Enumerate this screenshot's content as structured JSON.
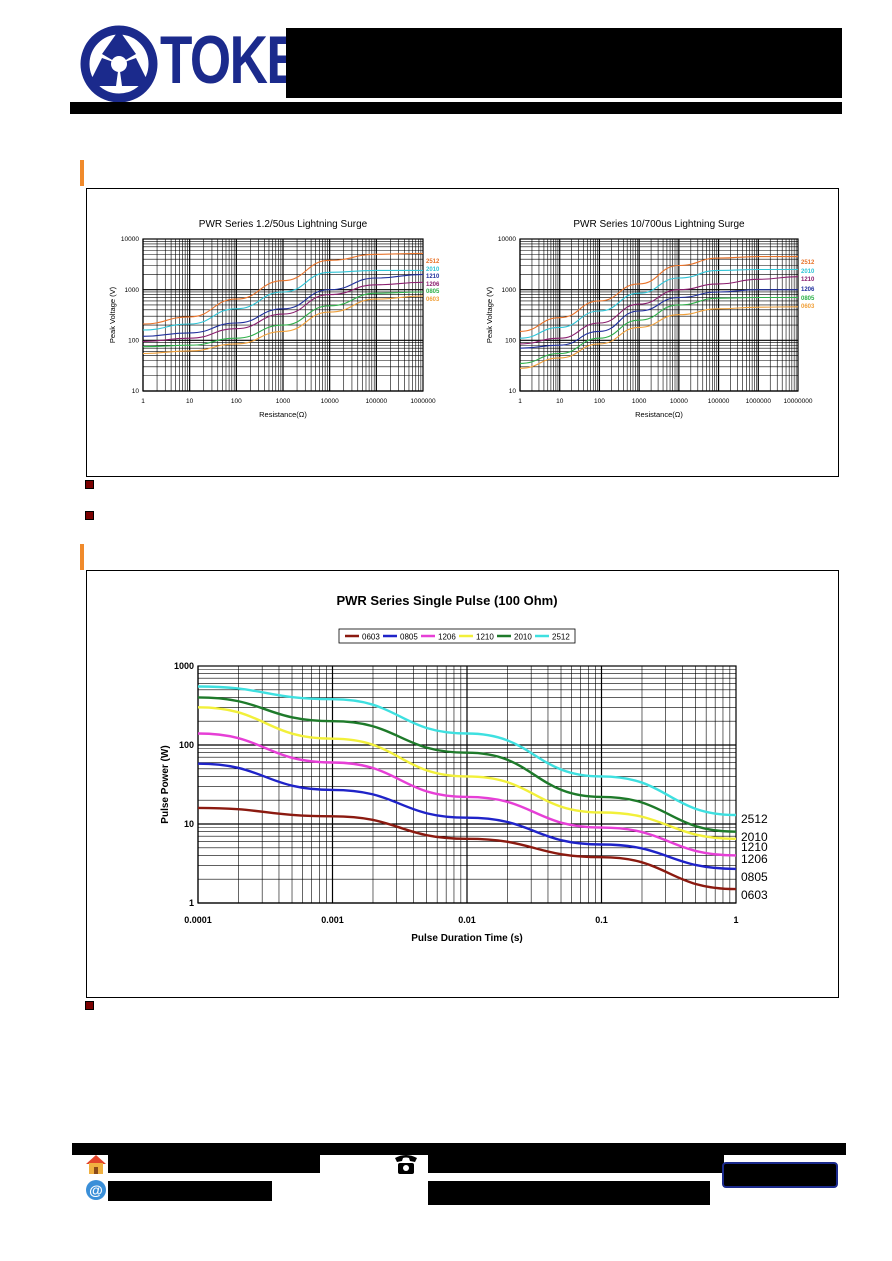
{
  "brand": {
    "name": "TOKEN",
    "colors": {
      "primary": "#1b2a8c",
      "accent": "#f08a2b",
      "bullet": "#7a0000"
    }
  },
  "icons": [
    "home-icon",
    "email-icon",
    "phone-icon"
  ],
  "chart_data": [
    {
      "type": "line",
      "title": "PWR Series 1.2/50us Lightning Surge",
      "xlabel": "Resistance(Ω)",
      "ylabel": "Peak Voltage (V)",
      "xscale": "log",
      "yscale": "log",
      "xlim": [
        1,
        1000000
      ],
      "ylim": [
        10,
        10000
      ],
      "xticks": [
        "1",
        "10",
        "100",
        "1000",
        "10000",
        "100000",
        "1000000"
      ],
      "yticks": [
        "10",
        "100",
        "1000",
        "10000"
      ],
      "grid": true,
      "series": [
        {
          "name": "2512",
          "color": "#e8732a",
          "points": [
            [
              1,
              210
            ],
            [
              10,
              290
            ],
            [
              100,
              650
            ],
            [
              1000,
              1500
            ],
            [
              10000,
              3800
            ],
            [
              100000,
              5000
            ],
            [
              1000000,
              5200
            ]
          ]
        },
        {
          "name": "2010",
          "color": "#2fc4d6",
          "points": [
            [
              1,
              160
            ],
            [
              10,
              210
            ],
            [
              100,
              420
            ],
            [
              1000,
              900
            ],
            [
              10000,
              2200
            ],
            [
              100000,
              2400
            ],
            [
              1000000,
              2400
            ]
          ]
        },
        {
          "name": "1210",
          "color": "#1f2f9c",
          "points": [
            [
              1,
              120
            ],
            [
              10,
              140
            ],
            [
              100,
              220
            ],
            [
              1000,
              420
            ],
            [
              10000,
              1000
            ],
            [
              100000,
              1700
            ],
            [
              1000000,
              2000
            ]
          ]
        },
        {
          "name": "1206",
          "color": "#8a1e6e",
          "points": [
            [
              1,
              95
            ],
            [
              10,
              110
            ],
            [
              100,
              170
            ],
            [
              1000,
              330
            ],
            [
              10000,
              800
            ],
            [
              100000,
              1250
            ],
            [
              1000000,
              1400
            ]
          ]
        },
        {
          "name": "0805",
          "color": "#2fb04a",
          "points": [
            [
              1,
              75
            ],
            [
              10,
              80
            ],
            [
              100,
              110
            ],
            [
              1000,
              200
            ],
            [
              10000,
              480
            ],
            [
              100000,
              850
            ],
            [
              1000000,
              900
            ]
          ]
        },
        {
          "name": "0603",
          "color": "#f0a03a",
          "points": [
            [
              1,
              55
            ],
            [
              10,
              62
            ],
            [
              100,
              85
            ],
            [
              1000,
              150
            ],
            [
              10000,
              360
            ],
            [
              100000,
              650
            ],
            [
              1000000,
              750
            ]
          ]
        }
      ]
    },
    {
      "type": "line",
      "title": "PWR Series 10/700us Lightning Surge",
      "xlabel": "Resistance(Ω)",
      "ylabel": "Peak Voltage (V)",
      "xscale": "log",
      "yscale": "log",
      "xlim": [
        1,
        10000000
      ],
      "ylim": [
        10,
        10000
      ],
      "xticks": [
        "1",
        "10",
        "100",
        "1000",
        "10000",
        "100000",
        "1000000",
        "10000000"
      ],
      "yticks": [
        "10",
        "100",
        "1000",
        "10000"
      ],
      "grid": true,
      "series": [
        {
          "name": "2512",
          "color": "#e8732a",
          "points": [
            [
              1,
              150
            ],
            [
              10,
              280
            ],
            [
              100,
              600
            ],
            [
              1000,
              1300
            ],
            [
              10000,
              3000
            ],
            [
              100000,
              4200
            ],
            [
              1000000,
              4500
            ],
            [
              10000000,
              4500
            ]
          ]
        },
        {
          "name": "2010",
          "color": "#2fc4d6",
          "points": [
            [
              1,
              110
            ],
            [
              10,
              180
            ],
            [
              100,
              380
            ],
            [
              1000,
              850
            ],
            [
              10000,
              1700
            ],
            [
              100000,
              2400
            ],
            [
              1000000,
              2500
            ],
            [
              10000000,
              2500
            ]
          ]
        },
        {
          "name": "1210",
          "color": "#8a1e6e",
          "points": [
            [
              1,
              85
            ],
            [
              10,
              110
            ],
            [
              100,
              220
            ],
            [
              1000,
              520
            ],
            [
              10000,
              1000
            ],
            [
              100000,
              1300
            ],
            [
              1000000,
              1600
            ],
            [
              10000000,
              1800
            ]
          ]
        },
        {
          "name": "1206",
          "color": "#1f2f9c",
          "points": [
            [
              1,
              70
            ],
            [
              10,
              80
            ],
            [
              100,
              150
            ],
            [
              1000,
              380
            ],
            [
              10000,
              700
            ],
            [
              100000,
              900
            ],
            [
              1000000,
              1000
            ],
            [
              10000000,
              1000
            ]
          ]
        },
        {
          "name": "0805",
          "color": "#2fb04a",
          "points": [
            [
              1,
              35
            ],
            [
              10,
              55
            ],
            [
              100,
              110
            ],
            [
              1000,
              250
            ],
            [
              10000,
              500
            ],
            [
              100000,
              680
            ],
            [
              1000000,
              700
            ],
            [
              10000000,
              700
            ]
          ]
        },
        {
          "name": "0603",
          "color": "#f0a03a",
          "points": [
            [
              1,
              28
            ],
            [
              10,
              45
            ],
            [
              100,
              85
            ],
            [
              1000,
              180
            ],
            [
              10000,
              320
            ],
            [
              100000,
              420
            ],
            [
              1000000,
              450
            ],
            [
              10000000,
              460
            ]
          ]
        }
      ]
    },
    {
      "type": "line",
      "title": "PWR Series Single Pulse (100 Ohm)",
      "xlabel": "Pulse Duration Time (s)",
      "ylabel": "Pulse Power (W)",
      "xscale": "log",
      "yscale": "log",
      "xlim": [
        0.0001,
        1
      ],
      "ylim": [
        1,
        1000
      ],
      "xticks": [
        "0.0001",
        "0.001",
        "0.01",
        "0.1",
        "1"
      ],
      "yticks": [
        "1",
        "10",
        "100",
        "1000"
      ],
      "grid": true,
      "legend": "top",
      "series": [
        {
          "name": "0603",
          "color": "#8b1a10",
          "end_label": "0603",
          "points": [
            [
              0.0001,
              16
            ],
            [
              0.001,
              12.5
            ],
            [
              0.01,
              6.5
            ],
            [
              0.1,
              3.8
            ],
            [
              1,
              1.5
            ]
          ]
        },
        {
          "name": "0805",
          "color": "#1f23c8",
          "end_label": "0805",
          "points": [
            [
              0.0001,
              58
            ],
            [
              0.001,
              27
            ],
            [
              0.01,
              12
            ],
            [
              0.1,
              5.5
            ],
            [
              1,
              2.7
            ]
          ]
        },
        {
          "name": "1206",
          "color": "#e63fd6",
          "end_label": "1206",
          "points": [
            [
              0.0001,
              140
            ],
            [
              0.001,
              60
            ],
            [
              0.01,
              22
            ],
            [
              0.1,
              9
            ],
            [
              1,
              4
            ]
          ]
        },
        {
          "name": "1210",
          "color": "#f2f03a",
          "end_label": "1210",
          "points": [
            [
              0.0001,
              300
            ],
            [
              0.001,
              120
            ],
            [
              0.01,
              40
            ],
            [
              0.1,
              14
            ],
            [
              1,
              6.5
            ]
          ]
        },
        {
          "name": "2010",
          "color": "#1e7a2a",
          "end_label": "2010",
          "points": [
            [
              0.0001,
              400
            ],
            [
              0.001,
              200
            ],
            [
              0.01,
              80
            ],
            [
              0.1,
              22
            ],
            [
              1,
              8
            ]
          ]
        },
        {
          "name": "2512",
          "color": "#3ee0e0",
          "end_label": "2512",
          "points": [
            [
              0.0001,
              550
            ],
            [
              0.001,
              380
            ],
            [
              0.01,
              140
            ],
            [
              0.1,
              40
            ],
            [
              1,
              13
            ]
          ]
        }
      ]
    }
  ]
}
